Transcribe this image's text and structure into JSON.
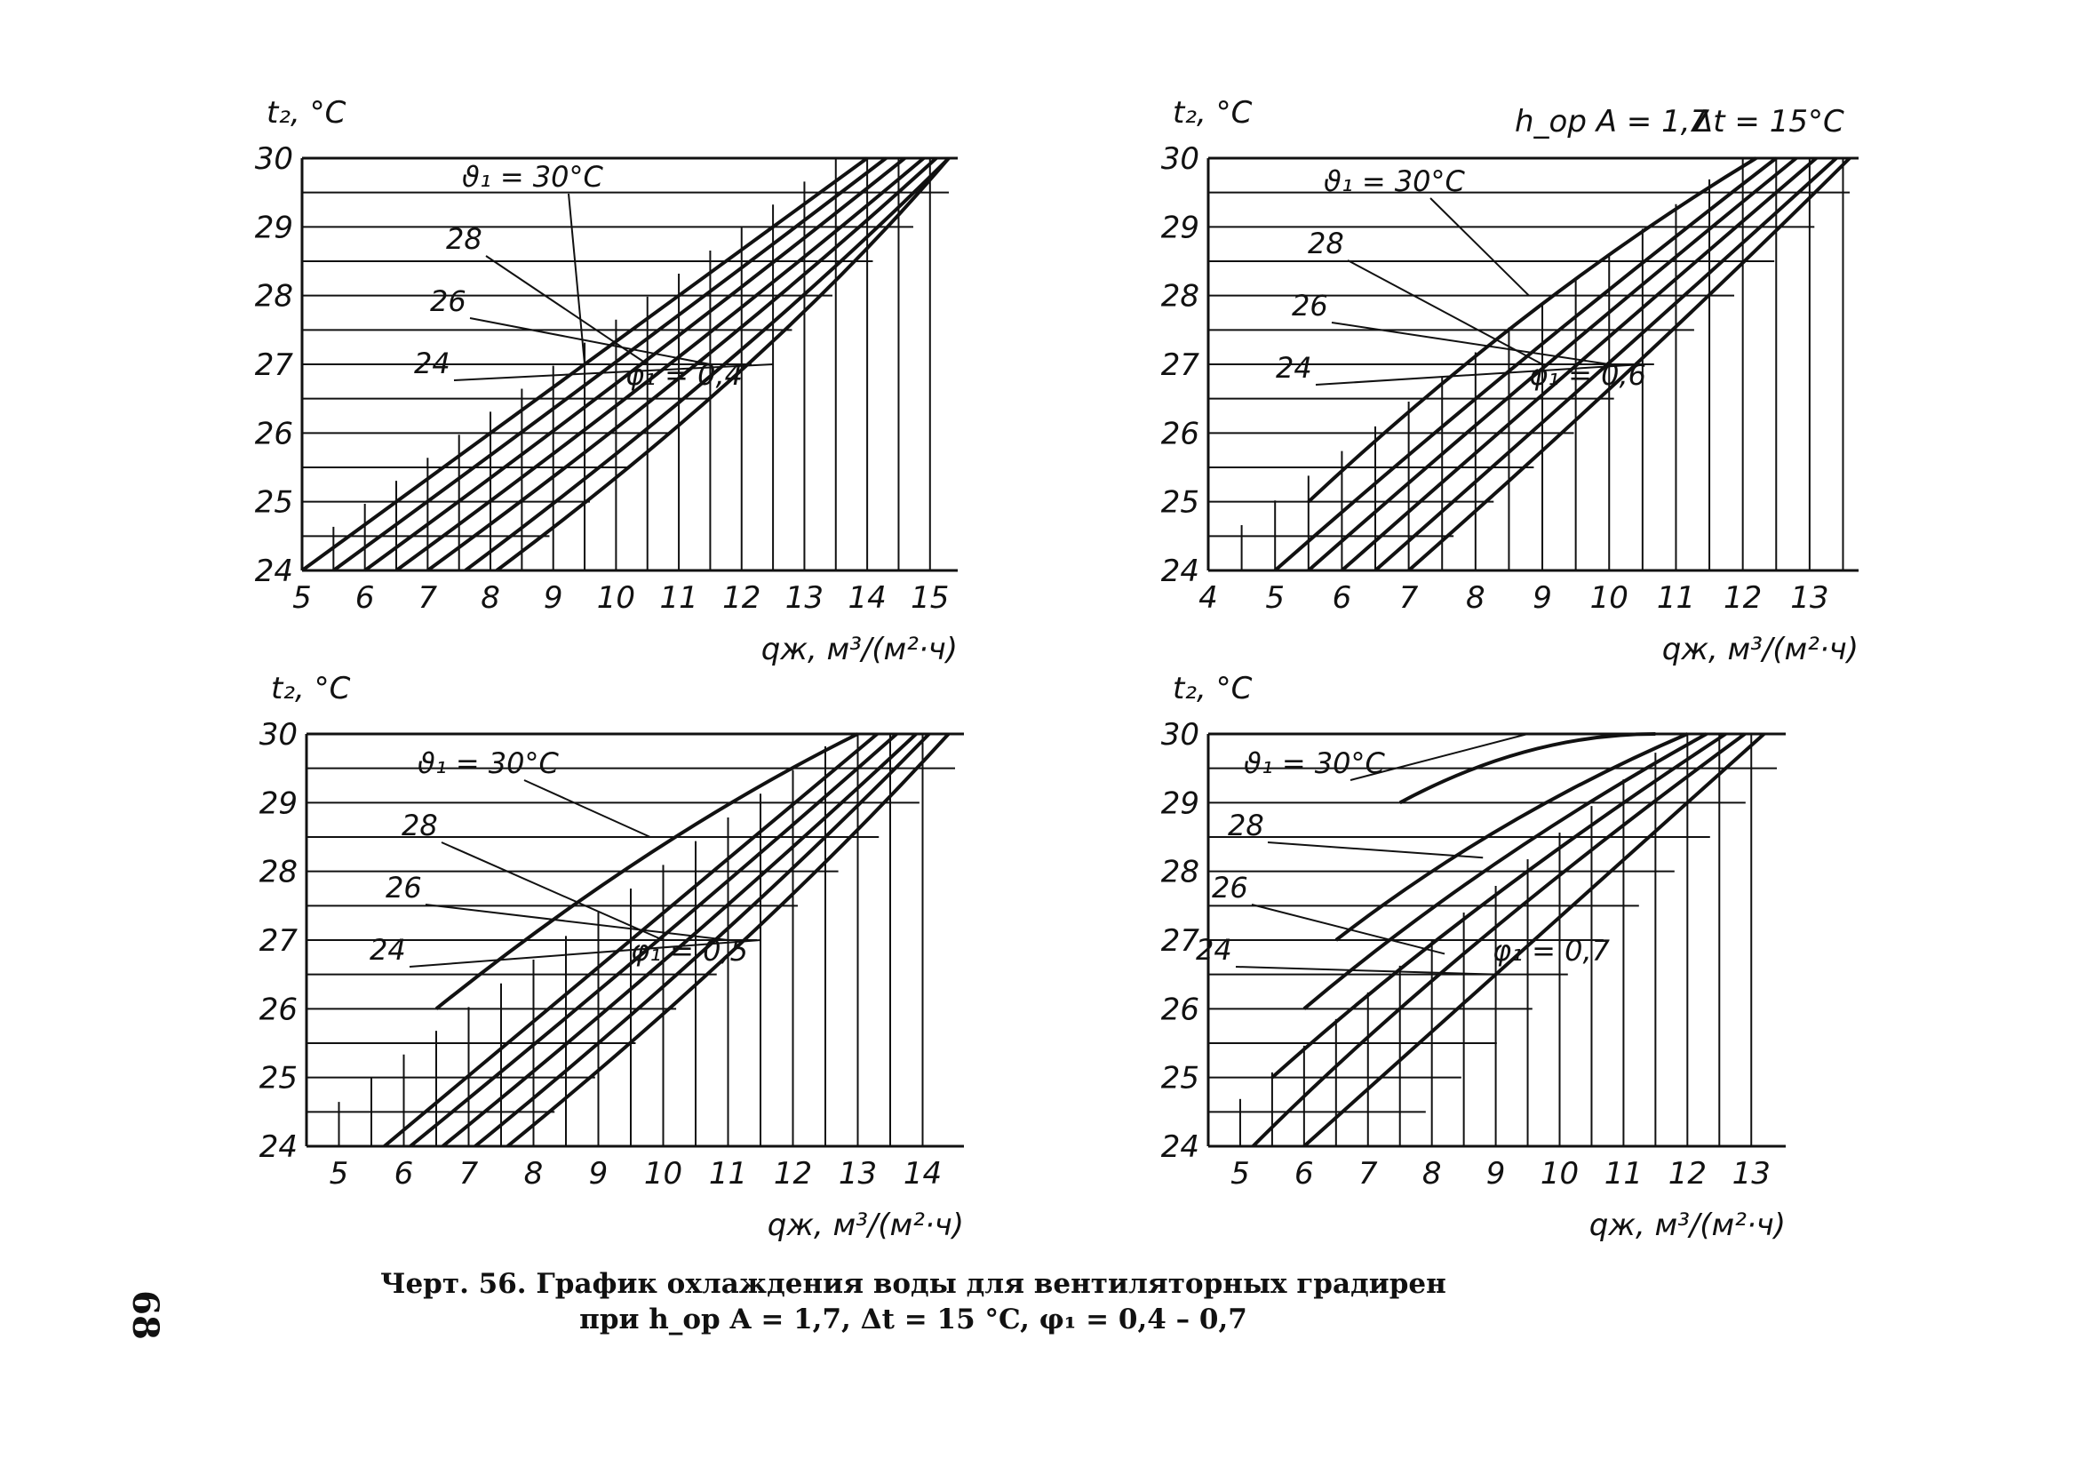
{
  "header": {
    "params_left": "h_op A = 1,7",
    "params_right": "Δt = 15°C"
  },
  "caption": {
    "line1": "Черт. 56. График охлаждения воды для вентиляторных градирен",
    "line2": "при h_op A = 1,7, Δt = 15 °C, φ₁ = 0,4 – 0,7"
  },
  "page_number": "68",
  "colors": {
    "ink": "#111111",
    "background": "#ffffff"
  },
  "chart_data": [
    {
      "type": "line",
      "phi_label": "φ₁ = 0,4",
      "xlabel": "qж, м³/(м²·ч)",
      "ylabel": "t₂, °C",
      "xlim": [
        5,
        15.3
      ],
      "ylim": [
        24,
        30
      ],
      "x_ticks": [
        "5",
        "6",
        "7",
        "8",
        "9",
        "10",
        "11",
        "12",
        "13",
        "14",
        "15"
      ],
      "y_ticks": [
        "24",
        "25",
        "26",
        "27",
        "28",
        "29",
        "30"
      ],
      "grid": "on (stepped, below-right of curves)",
      "series": [
        {
          "name": "ϑ₁ = 30°C",
          "x": [
            5.0,
            9.5,
            14.0
          ],
          "y": [
            24,
            27,
            30
          ]
        },
        {
          "name": "",
          "x": [
            5.5,
            10.0,
            14.3
          ],
          "y": [
            24,
            27,
            30
          ]
        },
        {
          "name": "28",
          "x": [
            6.0,
            10.5,
            14.6
          ],
          "y": [
            24,
            27,
            30
          ]
        },
        {
          "name": "",
          "x": [
            6.5,
            11.0,
            14.9
          ],
          "y": [
            24,
            27,
            30
          ]
        },
        {
          "name": "26",
          "x": [
            7.0,
            11.5,
            15.1
          ],
          "y": [
            24,
            27,
            30
          ]
        },
        {
          "name": "",
          "x": [
            7.6,
            12.0,
            15.3
          ],
          "y": [
            24,
            27,
            30
          ]
        },
        {
          "name": "24",
          "x": [
            8.1,
            12.5,
            15.5
          ],
          "y": [
            24,
            27,
            30
          ]
        }
      ]
    },
    {
      "type": "line",
      "phi_label": "φ₁ = 0,6",
      "xlabel": "qж, м³/(м²·ч)",
      "ylabel": "t₂, °C",
      "xlim": [
        4,
        13.6
      ],
      "ylim": [
        24,
        30
      ],
      "x_ticks": [
        "4",
        "5",
        "6",
        "7",
        "8",
        "9",
        "10",
        "11",
        "12",
        "13"
      ],
      "y_ticks": [
        "24",
        "25",
        "26",
        "27",
        "28",
        "29",
        "30"
      ],
      "grid": "on (stepped, below-right of curves)",
      "series": [
        {
          "name": "ϑ₁ = 30°C",
          "x": [
            5.5,
            8.8,
            12.2
          ],
          "y": [
            25,
            28,
            30
          ]
        },
        {
          "name": "",
          "x": [
            5.0,
            8.5,
            12.5
          ],
          "y": [
            24,
            27,
            30
          ]
        },
        {
          "name": "28",
          "x": [
            5.5,
            9.0,
            12.8
          ],
          "y": [
            24,
            27,
            30
          ]
        },
        {
          "name": "",
          "x": [
            6.0,
            9.5,
            13.1
          ],
          "y": [
            24,
            27,
            30
          ]
        },
        {
          "name": "26",
          "x": [
            6.5,
            10.0,
            13.4
          ],
          "y": [
            24,
            27,
            30
          ]
        },
        {
          "name": "24",
          "x": [
            7.0,
            10.5,
            13.7
          ],
          "y": [
            24,
            27,
            30
          ]
        }
      ]
    },
    {
      "type": "line",
      "phi_label": "φ₁ = 0,5",
      "xlabel": "qж, м³/(м²·ч)",
      "ylabel": "t₂, °C",
      "xlim": [
        4.5,
        14.5
      ],
      "ylim": [
        24,
        30
      ],
      "x_ticks": [
        "5",
        "6",
        "7",
        "8",
        "9",
        "10",
        "11",
        "12",
        "13",
        "14"
      ],
      "y_ticks": [
        "24",
        "25",
        "26",
        "27",
        "28",
        "29",
        "30"
      ],
      "grid": "on (stepped, below-right of curves)",
      "series": [
        {
          "name": "ϑ₁ = 30°C",
          "x": [
            6.5,
            9.8,
            13.0
          ],
          "y": [
            26,
            28.5,
            30
          ]
        },
        {
          "name": "",
          "x": [
            5.7,
            9.5,
            13.3
          ],
          "y": [
            24,
            27,
            30
          ]
        },
        {
          "name": "28",
          "x": [
            6.1,
            10.0,
            13.6
          ],
          "y": [
            24,
            27,
            30
          ]
        },
        {
          "name": "",
          "x": [
            6.6,
            10.5,
            13.9
          ],
          "y": [
            24,
            27,
            30
          ]
        },
        {
          "name": "26",
          "x": [
            7.1,
            11.0,
            14.1
          ],
          "y": [
            24,
            27,
            30
          ]
        },
        {
          "name": "24",
          "x": [
            7.6,
            11.5,
            14.4
          ],
          "y": [
            24,
            27,
            30
          ]
        }
      ]
    },
    {
      "type": "line",
      "phi_label": "φ₁ = 0,7",
      "xlabel": "qж, м³/(м²·ч)",
      "ylabel": "t₂, °C",
      "xlim": [
        4.5,
        13.4
      ],
      "ylim": [
        24,
        30
      ],
      "x_ticks": [
        "5",
        "6",
        "7",
        "8",
        "9",
        "10",
        "11",
        "12",
        "13"
      ],
      "y_ticks": [
        "24",
        "25",
        "26",
        "27",
        "28",
        "29",
        "30"
      ],
      "grid": "on (stepped, below-right of curves)",
      "series": [
        {
          "name": "ϑ₁ = 30°C",
          "x": [
            7.5,
            9.5,
            11.5
          ],
          "y": [
            29,
            30,
            30.3
          ]
        },
        {
          "name": "",
          "x": [
            6.5,
            9.0,
            12.0
          ],
          "y": [
            27,
            28.8,
            30
          ]
        },
        {
          "name": "28",
          "x": [
            6.0,
            8.8,
            12.3
          ],
          "y": [
            26,
            28.2,
            30
          ]
        },
        {
          "name": "",
          "x": [
            5.5,
            8.5,
            12.6
          ],
          "y": [
            25,
            27.5,
            30
          ]
        },
        {
          "name": "26",
          "x": [
            5.2,
            8.2,
            12.9
          ],
          "y": [
            24,
            26.8,
            30
          ]
        },
        {
          "name": "24",
          "x": [
            6.0,
            9.0,
            13.2
          ],
          "y": [
            24,
            26.5,
            30
          ]
        }
      ]
    }
  ]
}
